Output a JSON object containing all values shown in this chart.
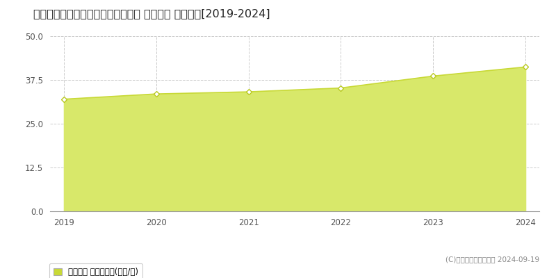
{
  "title": "福岡県那珂川市今光３丁目２４７番 基準地価 地価推移[2019-2024]",
  "years": [
    2019,
    2020,
    2021,
    2022,
    2023,
    2024
  ],
  "values": [
    32.0,
    33.5,
    34.1,
    35.2,
    38.6,
    41.2
  ],
  "ylim": [
    0,
    50
  ],
  "yticks": [
    0,
    12.5,
    25,
    37.5,
    50
  ],
  "line_color": "#c8d936",
  "fill_color": "#d8e86a",
  "fill_alpha": 1.0,
  "marker_color": "#ffffff",
  "marker_edge_color": "#b8c820",
  "bg_color": "#ffffff",
  "grid_color": "#cccccc",
  "title_fontsize": 11.5,
  "legend_label": "基準地価 平均坪単価(万円/坪)",
  "copyright_text": "(C)土地価格ドットコム 2024-09-19",
  "tick_color": "#555555",
  "legend_square_color": "#c8d936",
  "bottom_border_color": "#999999"
}
